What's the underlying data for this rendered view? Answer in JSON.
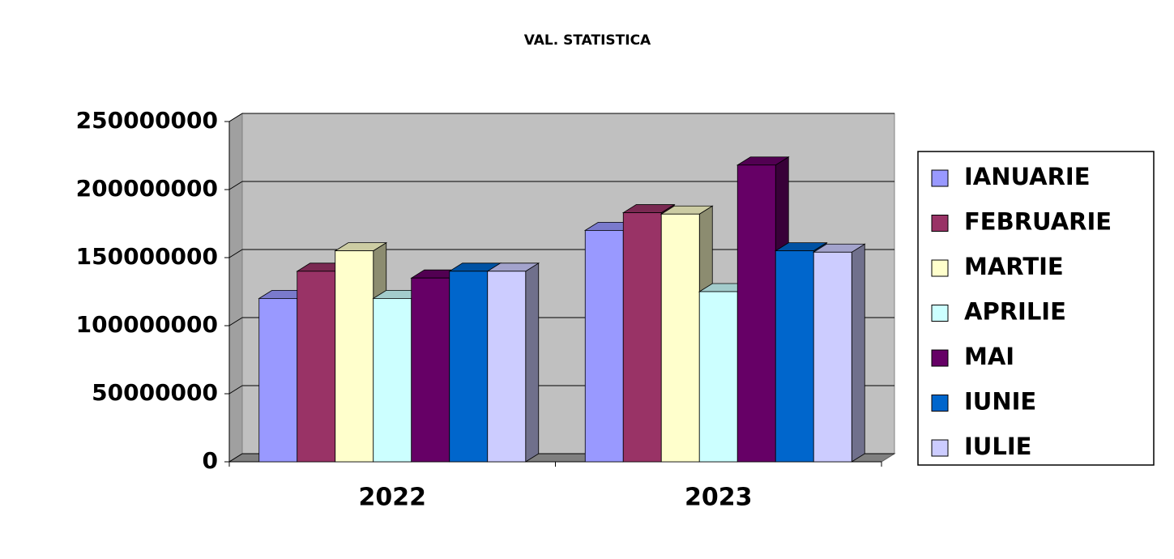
{
  "chart_data": {
    "type": "bar3d",
    "title": "VAL. STATISTICA",
    "categories": [
      "2022",
      "2023"
    ],
    "series": [
      {
        "name": "IANUARIE",
        "color": "#9999ff",
        "values": [
          120000000,
          170000000
        ]
      },
      {
        "name": "FEBRUARIE",
        "color": "#993366",
        "values": [
          140000000,
          183000000
        ]
      },
      {
        "name": "MARTIE",
        "color": "#ffffcc",
        "values": [
          155000000,
          182000000
        ]
      },
      {
        "name": "APRILIE",
        "color": "#ccffff",
        "values": [
          120000000,
          125000000
        ]
      },
      {
        "name": "MAI",
        "color": "#660066",
        "values": [
          135000000,
          218000000
        ]
      },
      {
        "name": "IUNIE",
        "color": "#0066cc",
        "values": [
          140000000,
          155000000
        ]
      },
      {
        "name": "IULIE",
        "color": "#ccccff",
        "values": [
          140000000,
          154000000
        ]
      }
    ],
    "ylim": [
      0,
      250000000
    ],
    "yticks": [
      0,
      50000000,
      100000000,
      150000000,
      200000000,
      250000000
    ],
    "grid": true,
    "legend": "right"
  }
}
